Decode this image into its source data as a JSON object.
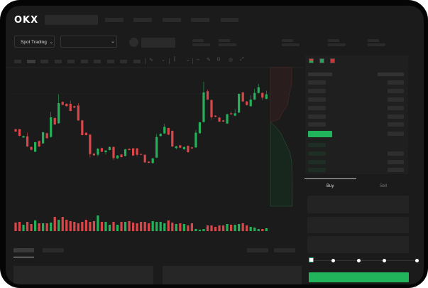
{
  "brand": {
    "logo": "OKX"
  },
  "colors": {
    "up": "#25b15a",
    "down": "#d9474a",
    "accent": "#22b45a",
    "background": "#1b1b1b"
  },
  "toolbar": {
    "market_select": "Spot Trading",
    "market_chevron": "chevron-down-icon",
    "pair_chevron": "chevron-down-icon"
  },
  "chart_icons": [
    "indicator-icon",
    "chevron-down-icon",
    "candle-type-icon",
    "chevron-down-icon",
    "line-icon",
    "pencil-icon",
    "camera-icon",
    "settings-icon",
    "fullscreen-icon"
  ],
  "orderbook": {
    "view_icons": [
      "orderbook-both-icon",
      "orderbook-bids-icon",
      "orderbook-asks-icon"
    ]
  },
  "trade": {
    "tabs": [
      {
        "label": "Buy",
        "active": true
      },
      {
        "label": "Sell",
        "active": false
      }
    ],
    "slider_percent": 0,
    "slider_stops": 5
  },
  "chart_data": {
    "type": "candlestick",
    "candles": [
      [
        185,
        187,
        173,
        175
      ],
      [
        185,
        186,
        155,
        157
      ],
      [
        150,
        158,
        148,
        156
      ],
      [
        155,
        170,
        110,
        112
      ],
      [
        110,
        112,
        96,
        98
      ],
      [
        90,
        132,
        88,
        130
      ],
      [
        135,
        137,
        110,
        112
      ],
      [
        125,
        174,
        123,
        172
      ],
      [
        168,
        170,
        145,
        147
      ],
      [
        152,
        258,
        150,
        235
      ],
      [
        232,
        236,
        203,
        205
      ],
      [
        210,
        332,
        208,
        295
      ],
      [
        300,
        302,
        286,
        288
      ],
      [
        292,
        294,
        280,
        282
      ],
      [
        292,
        305,
        260,
        262
      ],
      [
        282,
        284,
        274,
        276
      ],
      [
        285,
        295,
        220,
        222
      ],
      [
        222,
        224,
        158,
        160
      ],
      [
        170,
        172,
        158,
        160
      ],
      [
        162,
        164,
        65,
        80
      ],
      [
        82,
        84,
        73,
        75
      ],
      [
        77,
        105,
        70,
        103
      ],
      [
        105,
        107,
        88,
        90
      ],
      [
        88,
        97,
        78,
        95
      ],
      [
        97,
        112,
        95,
        110
      ],
      [
        110,
        112,
        55,
        63
      ],
      [
        62,
        76,
        60,
        74
      ],
      [
        78,
        80,
        65,
        67
      ],
      [
        72,
        102,
        70,
        100
      ],
      [
        102,
        104,
        95,
        97
      ],
      [
        104,
        106,
        72,
        74
      ],
      [
        104,
        106,
        70,
        77
      ],
      [
        80,
        82,
        75,
        77
      ],
      [
        77,
        79,
        43,
        45
      ],
      [
        48,
        50,
        41,
        43
      ],
      [
        42,
        64,
        40,
        62
      ],
      [
        65,
        165,
        63,
        152
      ],
      [
        156,
        168,
        154,
        166
      ],
      [
        167,
        208,
        165,
        195
      ],
      [
        190,
        192,
        160,
        162
      ],
      [
        178,
        180,
        110,
        112
      ],
      [
        105,
        115,
        100,
        113
      ],
      [
        117,
        119,
        105,
        107
      ],
      [
        100,
        112,
        98,
        110
      ],
      [
        115,
        117,
        86,
        88
      ],
      [
        108,
        110,
        102,
        104
      ],
      [
        108,
        182,
        106,
        170
      ],
      [
        168,
        216,
        166,
        214
      ],
      [
        215,
        385,
        213,
        340
      ],
      [
        345,
        352,
        308,
        310
      ],
      [
        308,
        310,
        225,
        235
      ],
      [
        242,
        244,
        235,
        237
      ],
      [
        234,
        236,
        215,
        217
      ],
      [
        222,
        224,
        215,
        217
      ],
      [
        209,
        250,
        207,
        248
      ],
      [
        252,
        260,
        246,
        248
      ],
      [
        242,
        270,
        240,
        252
      ],
      [
        255,
        336,
        253,
        334
      ],
      [
        340,
        342,
        300,
        302
      ],
      [
        302,
        304,
        285,
        287
      ],
      [
        282,
        328,
        280,
        310
      ],
      [
        310,
        355,
        308,
        338
      ],
      [
        338,
        376,
        336,
        362
      ],
      [
        338,
        340,
        308,
        318
      ],
      [
        313,
        348,
        311,
        332
      ]
    ],
    "volumes": [
      12,
      13,
      9,
      13,
      10,
      15,
      11,
      11,
      11,
      12,
      20,
      16,
      20,
      16,
      14,
      13,
      11,
      13,
      16,
      13,
      14,
      22,
      13,
      13,
      9,
      13,
      9,
      13,
      13,
      14,
      12,
      11,
      13,
      13,
      11,
      14,
      13,
      13,
      11,
      15,
      12,
      10,
      11,
      10,
      8,
      11,
      3,
      2,
      3,
      8,
      8,
      6,
      8,
      8,
      10,
      9,
      9,
      10,
      11,
      8,
      6,
      5,
      3,
      3,
      4
    ],
    "grid": false
  }
}
